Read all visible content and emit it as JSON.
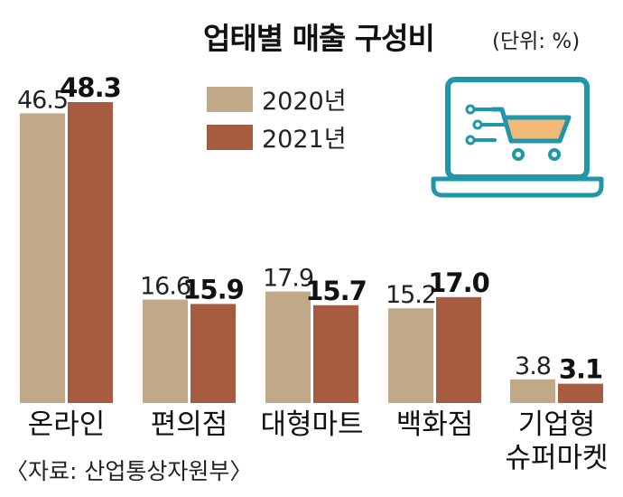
{
  "title": "업태별 매출 구성비",
  "unit": "(단위: %)",
  "source": "〈자료: 산업통상자원부〉",
  "colors": {
    "y2020": "#c1a887",
    "y2021": "#a85c3f",
    "icon": "#1f97a8",
    "iconFill": "#f2b979"
  },
  "icon": "laptop-shopping-cart-icon",
  "chart_data": {
    "type": "bar",
    "categories": [
      {
        "lines": [
          "온라인"
        ]
      },
      {
        "lines": [
          "편의점"
        ]
      },
      {
        "lines": [
          "대형마트"
        ]
      },
      {
        "lines": [
          "백화점"
        ]
      },
      {
        "lines": [
          "기업형",
          "슈퍼마켓"
        ]
      }
    ],
    "series": [
      {
        "name": "2020년",
        "values": [
          46.5,
          16.6,
          17.9,
          15.2,
          3.8
        ],
        "labels": [
          "46.5",
          "16.6",
          "17.9",
          "15.2",
          "3.8"
        ]
      },
      {
        "name": "2021년",
        "values": [
          48.3,
          15.9,
          15.7,
          17.0,
          3.1
        ],
        "labels": [
          "48.3",
          "15.9",
          "15.7",
          "17.0",
          "3.1"
        ]
      }
    ],
    "ylim": [
      0,
      48.3
    ],
    "grid": false,
    "legend": "top-center"
  }
}
